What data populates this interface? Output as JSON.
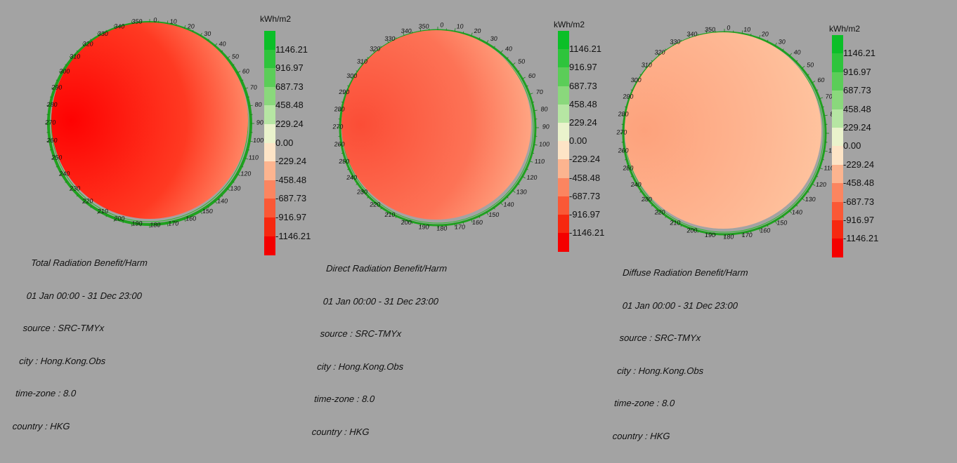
{
  "legend": {
    "unit": "kWh/m2",
    "labels": [
      "1146.21",
      "916.97",
      "687.73",
      "458.48",
      "229.24",
      "0.00",
      "-229.24",
      "-458.48",
      "-687.73",
      "-916.97",
      "-1146.21"
    ],
    "colors": [
      "#0bbf28",
      "#2ec43c",
      "#5bcd58",
      "#8ad87c",
      "#b6e6a3",
      "#eaf3cc",
      "#fde4c6",
      "#fcb48f",
      "#fb8560",
      "#fa5836",
      "#f62810",
      "#f40000"
    ]
  },
  "compass": {
    "labels": [
      "0",
      "10",
      "20",
      "30",
      "40",
      "50",
      "60",
      "70",
      "80",
      "90",
      "100",
      "110",
      "120",
      "130",
      "140",
      "150",
      "160",
      "170",
      "180",
      "190",
      "200",
      "210",
      "220",
      "230",
      "240",
      "250",
      "260",
      "270",
      "280",
      "290",
      "300",
      "310",
      "320",
      "330",
      "340",
      "350"
    ]
  },
  "panels": [
    {
      "title": "Total Radiation Benefit/Harm",
      "period": "01 Jan 00:00 - 31 Dec 23:00",
      "source": "source : SRC-TMYx",
      "city": "city : Hong.Kong.Obs",
      "timezone": "time-zone : 8.0",
      "country": "country : HKG",
      "dome_colors": [
        "#fe0202",
        "#ff3a22",
        "#ffb08a"
      ]
    },
    {
      "title": "Direct Radiation Benefit/Harm",
      "period": "01 Jan 00:00 - 31 Dec 23:00",
      "source": "source : SRC-TMYx",
      "city": "city : Hong.Kong.Obs",
      "timezone": "time-zone : 8.0",
      "country": "country : HKG",
      "dome_colors": [
        "#fb4d36",
        "#fd7356",
        "#ffbf9a"
      ]
    },
    {
      "title": "Diffuse Radiation Benefit/Harm",
      "period": "01 Jan 00:00 - 31 Dec 23:00",
      "source": "source : SRC-TMYx",
      "city": "city : Hong.Kong.Obs",
      "timezone": "time-zone : 8.0",
      "country": "country : HKG",
      "dome_colors": [
        "#fda27c",
        "#feb692",
        "#ffc9a4"
      ]
    }
  ]
}
